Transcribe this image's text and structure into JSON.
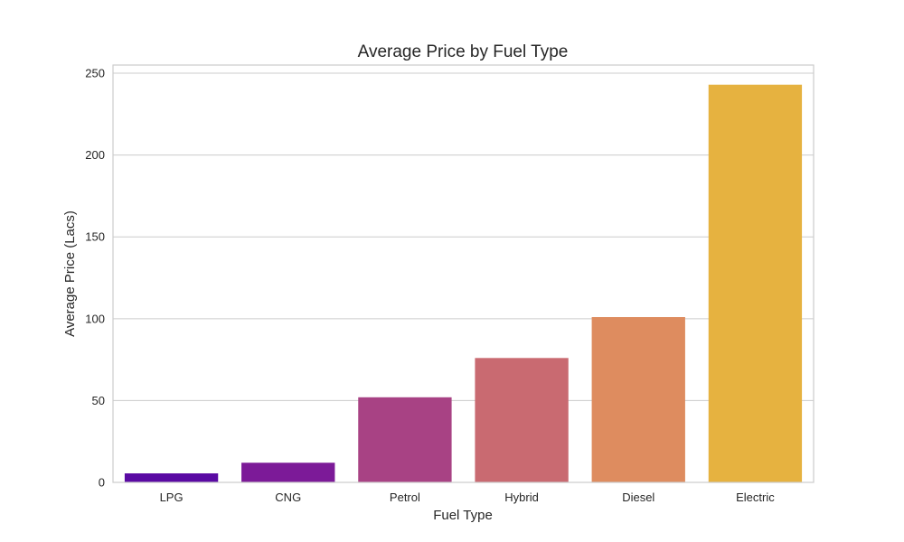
{
  "chart_data": {
    "type": "bar",
    "title": "Average Price by Fuel Type",
    "xlabel": "Fuel Type",
    "ylabel": "Average Price (Lacs)",
    "categories": [
      "LPG",
      "CNG",
      "Petrol",
      "Hybrid",
      "Diesel",
      "Electric"
    ],
    "values": [
      5.5,
      12,
      52,
      76,
      101,
      243
    ],
    "colors": [
      "#5a0aa3",
      "#7c1a98",
      "#a84284",
      "#c96a71",
      "#de8c5f",
      "#e6b240"
    ],
    "ylim": [
      0,
      255
    ],
    "yticks": [
      0,
      50,
      100,
      150,
      200,
      250
    ],
    "grid": true
  }
}
